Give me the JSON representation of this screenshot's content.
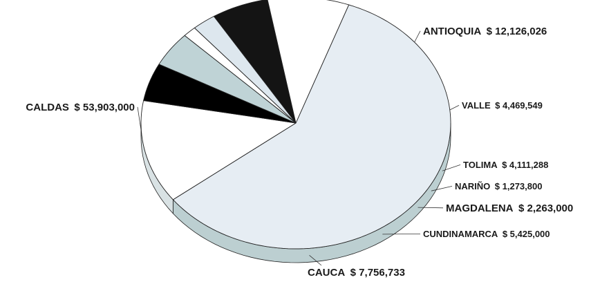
{
  "chart_data": {
    "type": "pie",
    "style": "3d",
    "title": "",
    "legend": "none",
    "slices": [
      {
        "label": "CALDAS",
        "amount": "$ 53,903,000",
        "value": 53903000,
        "fill": "#e6edf3",
        "side": "#bccfd1"
      },
      {
        "label": "ANTIOQUIA",
        "amount": "$ 12,126,026",
        "value": 12126026,
        "fill": "#ffffff",
        "side": "#d9e2e4"
      },
      {
        "label": "VALLE",
        "amount": "$ 4,469,549",
        "value": 4469549,
        "fill": "#000000",
        "side": "#000000"
      },
      {
        "label": "TOLIMA",
        "amount": "$ 4,111,288",
        "value": 4111288,
        "fill": "#bfd3d6",
        "side": "#a3bcbf"
      },
      {
        "label": "NARIÑO",
        "amount": "$ 1,273,800",
        "value": 1273800,
        "fill": "#ffffff",
        "side": "#d9e2e4"
      },
      {
        "label": "MAGDALENA",
        "amount": "$ 2,263,000",
        "value": 2263000,
        "fill": "#dde7ee",
        "side": "#b5c8cb"
      },
      {
        "label": "CUNDINAMARCA",
        "amount": "$ 5,425,000",
        "value": 5425000,
        "fill": "#141414",
        "side": "#000000"
      },
      {
        "label": "CAUCA",
        "amount": "$ 7,756,733",
        "value": 7756733,
        "fill": "#ffffff",
        "side": "#cfdcdf"
      }
    ]
  }
}
